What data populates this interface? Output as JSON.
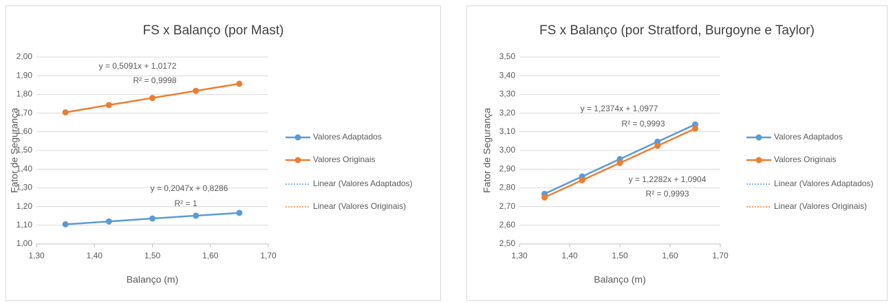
{
  "chart_data": [
    {
      "type": "line",
      "title": "FS x Balanço (por Mast)",
      "xlabel": "Balanço (m)",
      "ylabel": "Fator de Segurança",
      "x": [
        1.35,
        1.425,
        1.5,
        1.575,
        1.65
      ],
      "series": [
        {
          "name": "Valores Adaptados",
          "color": "#5b9bd5",
          "values": [
            1.105,
            1.12,
            1.136,
            1.151,
            1.166
          ]
        },
        {
          "name": "Valores Originais",
          "color": "#ed7d31",
          "values": [
            1.704,
            1.743,
            1.781,
            1.819,
            1.857
          ]
        }
      ],
      "trendlines": [
        {
          "name": "Linear (Valores Adaptados)",
          "color": "#5b9bd5",
          "style": "dotted"
        },
        {
          "name": "Linear (Valores Originais)",
          "color": "#ed7d31",
          "style": "dotted"
        }
      ],
      "annotations": [
        "y = 0,5091x + 1,0172",
        "R² = 0,9998",
        "y = 0,2047x + 0,8286",
        "R² = 1"
      ],
      "xlim": [
        1.3,
        1.7
      ],
      "xticks": [
        {
          "value": 1.3,
          "label": "1,30"
        },
        {
          "value": 1.4,
          "label": "1,40"
        },
        {
          "value": 1.5,
          "label": "1,50"
        },
        {
          "value": 1.6,
          "label": "1,60"
        },
        {
          "value": 1.7,
          "label": "1,70"
        }
      ],
      "ylim": [
        1.0,
        2.0
      ],
      "yticks": [
        {
          "value": 1.0,
          "label": "1,00"
        },
        {
          "value": 1.1,
          "label": "1,10"
        },
        {
          "value": 1.2,
          "label": "1,20"
        },
        {
          "value": 1.3,
          "label": "1,30"
        },
        {
          "value": 1.4,
          "label": "1,40"
        },
        {
          "value": 1.5,
          "label": "1,50"
        },
        {
          "value": 1.6,
          "label": "1,60"
        },
        {
          "value": 1.7,
          "label": "1,70"
        },
        {
          "value": 1.8,
          "label": "1,80"
        },
        {
          "value": 1.9,
          "label": "1,90"
        },
        {
          "value": 2.0,
          "label": "2,00"
        }
      ],
      "grid": true,
      "legend": "right"
    },
    {
      "type": "line",
      "title": "FS x Balanço (por Stratford, Burgoyne e Taylor)",
      "xlabel": "Balanço (m)",
      "ylabel": "Fator de Segurança",
      "x": [
        1.35,
        1.425,
        1.5,
        1.575,
        1.65
      ],
      "series": [
        {
          "name": "Valores Adaptados",
          "color": "#5b9bd5",
          "values": [
            2.768,
            2.861,
            2.954,
            3.047,
            3.139
          ]
        },
        {
          "name": "Valores Originais",
          "color": "#ed7d31",
          "values": [
            2.749,
            2.841,
            2.933,
            3.025,
            3.117
          ]
        }
      ],
      "trendlines": [
        {
          "name": "Linear (Valores Adaptados)",
          "color": "#5b9bd5",
          "style": "dotted"
        },
        {
          "name": "Linear (Valores Originais)",
          "color": "#ed7d31",
          "style": "dotted"
        }
      ],
      "annotations": [
        "y = 1,2374x + 1,0977",
        "R² = 0,9993",
        "y = 1,2282x + 1,0904",
        "R² = 0,9993"
      ],
      "xlim": [
        1.3,
        1.7
      ],
      "xticks": [
        {
          "value": 1.3,
          "label": "1,30"
        },
        {
          "value": 1.4,
          "label": "1,40"
        },
        {
          "value": 1.5,
          "label": "1,50"
        },
        {
          "value": 1.6,
          "label": "1,60"
        },
        {
          "value": 1.7,
          "label": "1,70"
        }
      ],
      "ylim": [
        2.5,
        3.5
      ],
      "yticks": [
        {
          "value": 2.5,
          "label": "2,50"
        },
        {
          "value": 2.6,
          "label": "2,60"
        },
        {
          "value": 2.7,
          "label": "2,70"
        },
        {
          "value": 2.8,
          "label": "2,80"
        },
        {
          "value": 2.9,
          "label": "2,90"
        },
        {
          "value": 3.0,
          "label": "3,00"
        },
        {
          "value": 3.1,
          "label": "3,10"
        },
        {
          "value": 3.2,
          "label": "3,20"
        },
        {
          "value": 3.3,
          "label": "3,30"
        },
        {
          "value": 3.4,
          "label": "3,40"
        },
        {
          "value": 3.5,
          "label": "3,50"
        }
      ],
      "grid": true,
      "legend": "right"
    }
  ]
}
